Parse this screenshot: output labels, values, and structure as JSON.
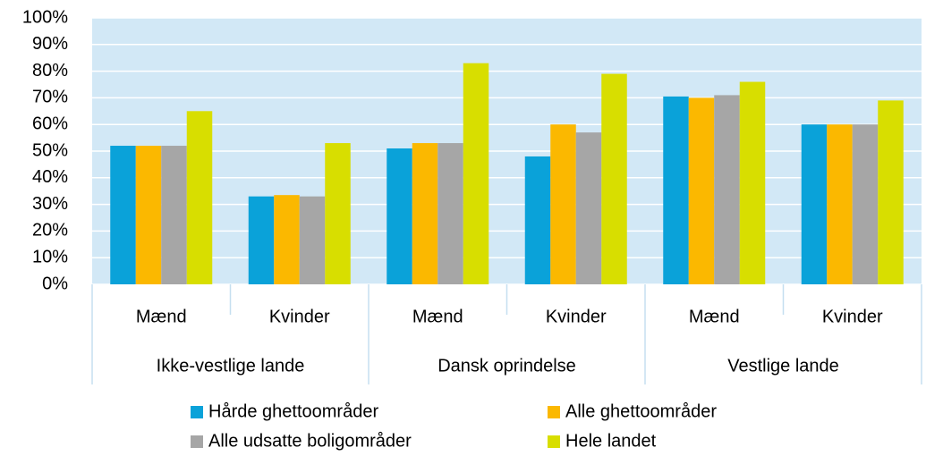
{
  "chart_data": {
    "type": "bar",
    "categories": [
      "Mænd",
      "Kvinder",
      "Mænd",
      "Kvinder",
      "Mænd",
      "Kvinder"
    ],
    "groups": [
      "Ikke-vestlige lande",
      "Dansk oprindelse",
      "Vestlige lande"
    ],
    "series": [
      {
        "name": "Hårde ghettoområder",
        "color": "#0aa2d9",
        "values": [
          52,
          33,
          51,
          48,
          70.5,
          60
        ]
      },
      {
        "name": "Alle ghettoområder",
        "color": "#fbb800",
        "values": [
          52,
          33.5,
          53,
          60,
          70,
          60
        ]
      },
      {
        "name": "Alle udsatte boligområder",
        "color": "#a6a6a6",
        "values": [
          52,
          33,
          53,
          57,
          71,
          60
        ]
      },
      {
        "name": "Hele landet",
        "color": "#d8de00",
        "values": [
          65,
          53,
          83,
          79,
          76,
          69
        ]
      }
    ],
    "ylim": [
      0,
      100
    ],
    "yticks": [
      {
        "value": 0,
        "label": "0%"
      },
      {
        "value": 10,
        "label": "10%"
      },
      {
        "value": 20,
        "label": "20%"
      },
      {
        "value": 30,
        "label": "30%"
      },
      {
        "value": 40,
        "label": "40%"
      },
      {
        "value": 50,
        "label": "50%"
      },
      {
        "value": 60,
        "label": "60%"
      },
      {
        "value": 70,
        "label": "70%"
      },
      {
        "value": 80,
        "label": "80%"
      },
      {
        "value": 90,
        "label": "90%"
      },
      {
        "value": 100,
        "label": "100%"
      }
    ],
    "grid": true
  }
}
